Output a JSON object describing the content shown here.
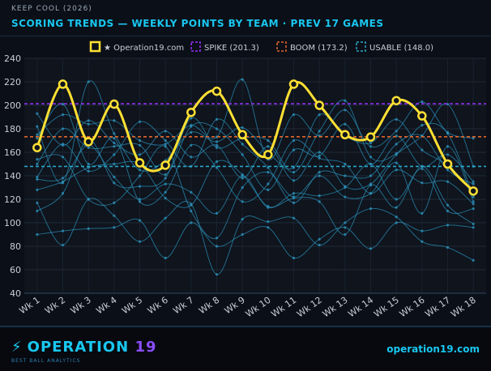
{
  "header": {
    "kicker": "KEEP COOL (2026)",
    "title": "SCORING TRENDS — WEEKLY POINTS BY TEAM · PREV 17 GAMES"
  },
  "footer": {
    "brand_part1": "OPERATION",
    "brand_part2": "19",
    "tagline": "BEST BALL ANALYTICS",
    "site": "operation19.com"
  },
  "chart_data": {
    "type": "line",
    "title": "SCORING TRENDS — WEEKLY POINTS BY TEAM · PREV 17 GAMES",
    "xlabel": "",
    "ylabel": "",
    "categories": [
      "Wk 1",
      "Wk 2",
      "Wk 3",
      "Wk 4",
      "Wk 5",
      "Wk 6",
      "Wk 7",
      "Wk 8",
      "Wk 9",
      "Wk 10",
      "Wk 11",
      "Wk 12",
      "Wk 13",
      "Wk 14",
      "Wk 15",
      "Wk 16",
      "Wk 17",
      "Wk 18"
    ],
    "ylim": [
      40,
      240
    ],
    "yticks": [
      40,
      60,
      80,
      100,
      120,
      140,
      160,
      180,
      200,
      220,
      240
    ],
    "grid": true,
    "legend_position": "top",
    "highlight": {
      "name": "★ Operation19.com",
      "color": "#ffe033",
      "values": [
        164,
        218,
        169,
        201,
        151,
        149,
        194,
        212,
        175,
        158,
        218,
        200,
        175,
        173,
        204,
        191,
        150,
        127
      ]
    },
    "reference_lines": [
      {
        "name": "SPIKE (201.3)",
        "value": 201.3,
        "color": "#9b30ff"
      },
      {
        "name": "BOOM (173.2)",
        "value": 173.2,
        "color": "#e0662a"
      },
      {
        "name": "USABLE (148.0)",
        "value": 148.0,
        "color": "#2aa6c8"
      }
    ],
    "background_series_color": "#2b90b8",
    "background_series": [
      {
        "values": [
          90,
          93,
          95,
          96,
          102,
          70,
          100,
          80,
          90,
          96,
          70,
          86,
          96,
          78,
          100,
          93,
          98,
          96
        ]
      },
      {
        "values": [
          117,
          81,
          120,
          106,
          84,
          104,
          116,
          56,
          103,
          101,
          104,
          81,
          100,
          112,
          105,
          84,
          79,
          68
        ]
      },
      {
        "values": [
          137,
          138,
          166,
          139,
          120,
          133,
          126,
          108,
          140,
          113,
          125,
          123,
          130,
          150,
          120,
          146,
          110,
          112
        ]
      },
      {
        "values": [
          150,
          180,
          164,
          165,
          166,
          141,
          182,
          180,
          158,
          128,
          162,
          157,
          184,
          150,
          174,
          148,
          158,
          135
        ]
      },
      {
        "values": [
          175,
          192,
          184,
          187,
          170,
          167,
          183,
          173,
          222,
          154,
          192,
          174,
          196,
          165,
          178,
          203,
          177,
          172
        ]
      },
      {
        "values": [
          182,
          134,
          220,
          176,
          145,
          153,
          177,
          169,
          181,
          160,
          147,
          192,
          174,
          168,
          188,
          162,
          149,
          125
        ]
      },
      {
        "values": [
          128,
          135,
          147,
          150,
          150,
          121,
          115,
          152,
          141,
          114,
          121,
          118,
          90,
          132,
          113,
          148,
          115,
          99
        ]
      },
      {
        "values": [
          193,
          166,
          187,
          168,
          158,
          178,
          156,
          166,
          138,
          165,
          136,
          160,
          131,
          133,
          158,
          174,
          201,
          148
        ]
      },
      {
        "values": [
          110,
          125,
          171,
          134,
          131,
          138,
          189,
          164,
          172,
          170,
          143,
          178,
          204,
          156,
          159,
          183,
          176,
          122
        ]
      },
      {
        "values": [
          154,
          156,
          120,
          117,
          140,
          165,
          110,
          87,
          130,
          143,
          122,
          140,
          122,
          125,
          151,
          108,
          165,
          118
        ]
      },
      {
        "values": [
          139,
          167,
          144,
          158,
          186,
          170,
          148,
          188,
          167,
          147,
          117,
          143,
          140,
          140,
          167,
          174,
          145,
          133
        ]
      },
      {
        "values": [
          172,
          201,
          150,
          172,
          118,
          126,
          166,
          147,
          118,
          133,
          170,
          155,
          150,
          125,
          145,
          134,
          135,
          116
        ]
      }
    ]
  }
}
